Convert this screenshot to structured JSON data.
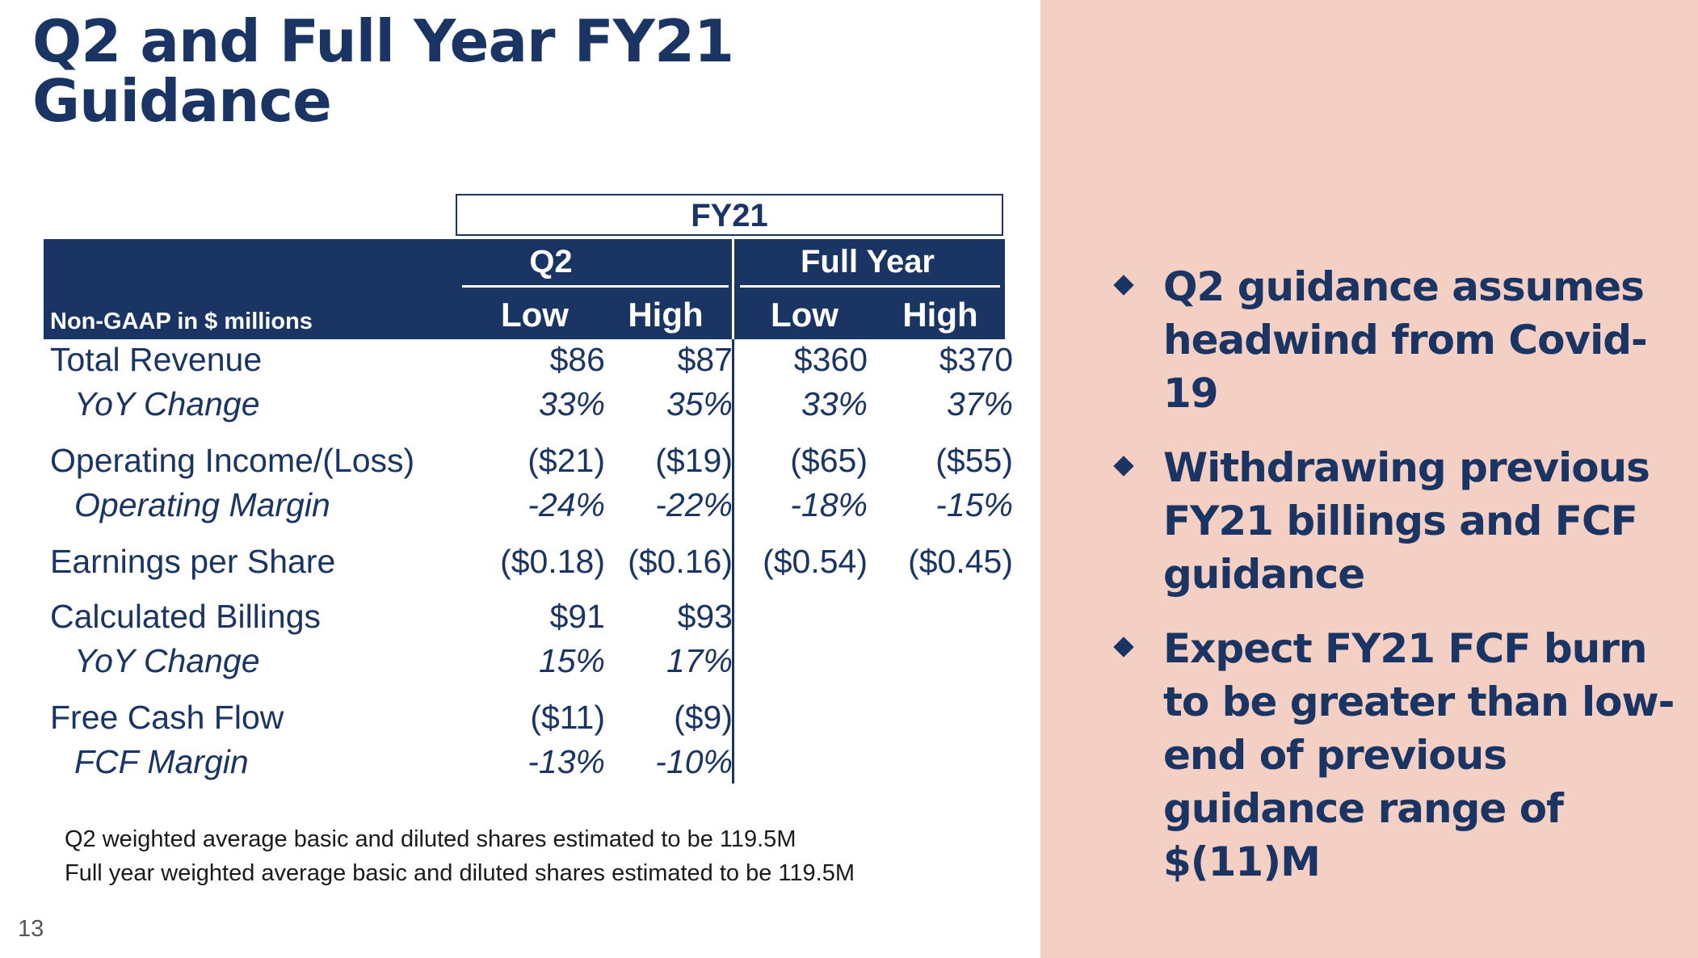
{
  "title_line1": "Q2 and Full Year FY21",
  "title_line2": "Guidance",
  "table": {
    "top_header": "FY21",
    "units_label": "Non-GAAP in $ millions",
    "groups": [
      "Q2",
      "Full Year"
    ],
    "columns": [
      "Low",
      "High",
      "Low",
      "High"
    ],
    "rows": [
      {
        "label": "Total Revenue",
        "sub": false,
        "values": [
          "$86",
          "$87",
          "$360",
          "$370"
        ]
      },
      {
        "label": "YoY Change",
        "sub": true,
        "values": [
          "33%",
          "35%",
          "33%",
          "37%"
        ]
      },
      {
        "label": "Operating Income/(Loss)",
        "sub": false,
        "values": [
          "($21)",
          "($19)",
          "($65)",
          "($55)"
        ]
      },
      {
        "label": "Operating Margin",
        "sub": true,
        "values": [
          "-24%",
          "-22%",
          "-18%",
          "-15%"
        ]
      },
      {
        "label": "Earnings per Share",
        "sub": false,
        "values": [
          "($0.18)",
          "($0.16)",
          "($0.54)",
          "($0.45)"
        ]
      },
      {
        "label": "Calculated Billings",
        "sub": false,
        "values": [
          "$91",
          "$93",
          "",
          ""
        ]
      },
      {
        "label": "YoY Change",
        "sub": true,
        "values": [
          "15%",
          "17%",
          "",
          ""
        ]
      },
      {
        "label": "Free Cash Flow",
        "sub": false,
        "values": [
          "($11)",
          "($9)",
          "",
          ""
        ]
      },
      {
        "label": "FCF Margin",
        "sub": true,
        "values": [
          "-13%",
          "-10%",
          "",
          ""
        ]
      }
    ]
  },
  "footnotes": [
    "Q2 weighted average basic and diluted shares estimated to be 119.5M",
    "Full year weighted average basic and diluted shares estimated to be 119.5M"
  ],
  "page_number": "13",
  "bullets": [
    "Q2 guidance assumes headwind from Covid-19",
    "Withdrawing previous FY21 billings and FCF guidance",
    "Expect FY21 FCF burn to be greater than low-end of previous guidance range of $(11)M"
  ],
  "colors": {
    "navy": "#1a3563",
    "panel": "#f4cfc4"
  },
  "icons": {
    "bullet": "diamond-bullet-icon"
  }
}
